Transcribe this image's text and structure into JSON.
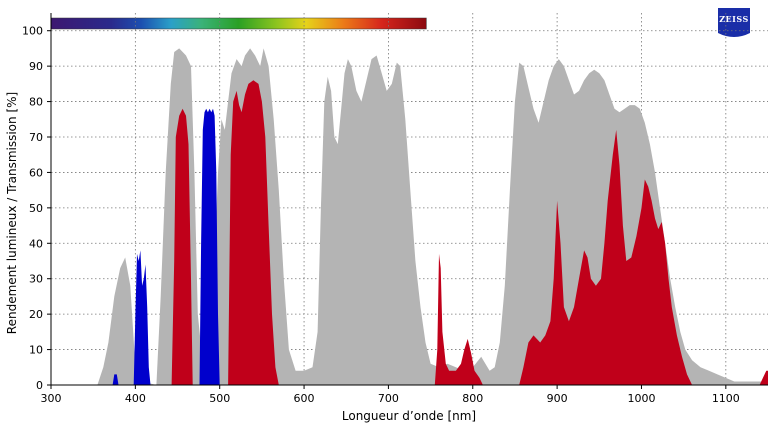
{
  "logo": {
    "text": "ZEISS",
    "color": "#1a2ea8"
  },
  "chart_data": {
    "type": "area",
    "xlabel": "Longueur d’onde [nm]",
    "ylabel": "Rendement lumineux / Transmission [%]",
    "xlim": [
      300,
      1150
    ],
    "ylim": [
      0,
      105
    ],
    "xticks": [
      300,
      400,
      500,
      600,
      700,
      800,
      900,
      1000,
      1100
    ],
    "yticks": [
      0,
      10,
      20,
      30,
      40,
      50,
      60,
      70,
      80,
      90,
      100
    ],
    "grid": true,
    "spectrum_bar": {
      "from_nm": 300,
      "to_nm": 745
    },
    "series": [
      {
        "color": "#b4b4b4",
        "points": [
          [
            355,
            0
          ],
          [
            362,
            5
          ],
          [
            368,
            12
          ],
          [
            375,
            25
          ],
          [
            382,
            33
          ],
          [
            388,
            36
          ],
          [
            394,
            28
          ],
          [
            400,
            5
          ],
          [
            408,
            1
          ],
          [
            425,
            0
          ],
          [
            430,
            25
          ],
          [
            436,
            60
          ],
          [
            442,
            85
          ],
          [
            446,
            94
          ],
          [
            452,
            95
          ],
          [
            460,
            93
          ],
          [
            466,
            90
          ],
          [
            470,
            60
          ],
          [
            474,
            20
          ],
          [
            480,
            6
          ],
          [
            488,
            10
          ],
          [
            494,
            35
          ],
          [
            498,
            60
          ],
          [
            502,
            75
          ],
          [
            506,
            72
          ],
          [
            510,
            80
          ],
          [
            514,
            88
          ],
          [
            520,
            92
          ],
          [
            526,
            90
          ],
          [
            530,
            93
          ],
          [
            536,
            95
          ],
          [
            542,
            93
          ],
          [
            548,
            90
          ],
          [
            552,
            95
          ],
          [
            558,
            90
          ],
          [
            564,
            75
          ],
          [
            570,
            55
          ],
          [
            576,
            30
          ],
          [
            582,
            10
          ],
          [
            590,
            4
          ],
          [
            600,
            4
          ],
          [
            610,
            5
          ],
          [
            616,
            15
          ],
          [
            620,
            50
          ],
          [
            624,
            80
          ],
          [
            628,
            87
          ],
          [
            632,
            83
          ],
          [
            636,
            70
          ],
          [
            640,
            68
          ],
          [
            644,
            78
          ],
          [
            648,
            88
          ],
          [
            652,
            92
          ],
          [
            656,
            90
          ],
          [
            662,
            83
          ],
          [
            668,
            80
          ],
          [
            674,
            86
          ],
          [
            680,
            92
          ],
          [
            686,
            93
          ],
          [
            692,
            88
          ],
          [
            698,
            83
          ],
          [
            704,
            85
          ],
          [
            710,
            91
          ],
          [
            714,
            90
          ],
          [
            720,
            75
          ],
          [
            726,
            55
          ],
          [
            732,
            35
          ],
          [
            738,
            22
          ],
          [
            744,
            12
          ],
          [
            750,
            6
          ],
          [
            760,
            5
          ],
          [
            770,
            6
          ],
          [
            780,
            5
          ],
          [
            790,
            4
          ],
          [
            800,
            5
          ],
          [
            810,
            8
          ],
          [
            815,
            6
          ],
          [
            820,
            4
          ],
          [
            826,
            5
          ],
          [
            832,
            12
          ],
          [
            838,
            28
          ],
          [
            844,
            55
          ],
          [
            850,
            80
          ],
          [
            855,
            91
          ],
          [
            860,
            90
          ],
          [
            866,
            84
          ],
          [
            872,
            78
          ],
          [
            878,
            74
          ],
          [
            884,
            80
          ],
          [
            890,
            86
          ],
          [
            896,
            90
          ],
          [
            902,
            92
          ],
          [
            908,
            90
          ],
          [
            914,
            86
          ],
          [
            920,
            82
          ],
          [
            926,
            83
          ],
          [
            932,
            86
          ],
          [
            938,
            88
          ],
          [
            944,
            89
          ],
          [
            950,
            88
          ],
          [
            956,
            86
          ],
          [
            962,
            82
          ],
          [
            968,
            78
          ],
          [
            974,
            77
          ],
          [
            980,
            78
          ],
          [
            986,
            79
          ],
          [
            992,
            79
          ],
          [
            998,
            78
          ],
          [
            1004,
            74
          ],
          [
            1010,
            68
          ],
          [
            1016,
            60
          ],
          [
            1022,
            50
          ],
          [
            1028,
            40
          ],
          [
            1034,
            30
          ],
          [
            1040,
            22
          ],
          [
            1046,
            15
          ],
          [
            1052,
            10
          ],
          [
            1060,
            7
          ],
          [
            1070,
            5
          ],
          [
            1080,
            4
          ],
          [
            1090,
            3
          ],
          [
            1100,
            2
          ],
          [
            1110,
            1
          ],
          [
            1125,
            1
          ],
          [
            1135,
            1
          ],
          [
            1150,
            1
          ]
        ]
      },
      {
        "color": "#c0001a",
        "points": [
          [
            443,
            0
          ],
          [
            446,
            35
          ],
          [
            448,
            70
          ],
          [
            452,
            76
          ],
          [
            456,
            78
          ],
          [
            460,
            76
          ],
          [
            463,
            68
          ],
          [
            466,
            30
          ],
          [
            468,
            0
          ],
          [
            510,
            0
          ],
          [
            513,
            65
          ],
          [
            516,
            80
          ],
          [
            520,
            83
          ],
          [
            523,
            79
          ],
          [
            526,
            77
          ],
          [
            530,
            82
          ],
          [
            534,
            85
          ],
          [
            540,
            86
          ],
          [
            546,
            85
          ],
          [
            550,
            80
          ],
          [
            554,
            70
          ],
          [
            558,
            45
          ],
          [
            562,
            20
          ],
          [
            566,
            5
          ],
          [
            570,
            0
          ],
          [
            755,
            0
          ],
          [
            758,
            10
          ],
          [
            760,
            37
          ],
          [
            762,
            33
          ],
          [
            764,
            15
          ],
          [
            768,
            6
          ],
          [
            772,
            4
          ],
          [
            780,
            4
          ],
          [
            786,
            6
          ],
          [
            790,
            10
          ],
          [
            794,
            13
          ],
          [
            798,
            9
          ],
          [
            802,
            4
          ],
          [
            808,
            2
          ],
          [
            812,
            0
          ],
          [
            855,
            0
          ],
          [
            860,
            5
          ],
          [
            866,
            12
          ],
          [
            872,
            14
          ],
          [
            880,
            12
          ],
          [
            886,
            14
          ],
          [
            892,
            18
          ],
          [
            896,
            30
          ],
          [
            900,
            52
          ],
          [
            904,
            40
          ],
          [
            908,
            22
          ],
          [
            914,
            18
          ],
          [
            920,
            22
          ],
          [
            926,
            30
          ],
          [
            932,
            38
          ],
          [
            936,
            36
          ],
          [
            940,
            30
          ],
          [
            946,
            28
          ],
          [
            952,
            30
          ],
          [
            956,
            40
          ],
          [
            960,
            52
          ],
          [
            966,
            65
          ],
          [
            970,
            72
          ],
          [
            974,
            62
          ],
          [
            978,
            45
          ],
          [
            982,
            35
          ],
          [
            988,
            36
          ],
          [
            994,
            42
          ],
          [
            1000,
            50
          ],
          [
            1004,
            58
          ],
          [
            1008,
            56
          ],
          [
            1012,
            52
          ],
          [
            1016,
            47
          ],
          [
            1020,
            44
          ],
          [
            1024,
            46
          ],
          [
            1028,
            40
          ],
          [
            1032,
            30
          ],
          [
            1036,
            22
          ],
          [
            1042,
            14
          ],
          [
            1048,
            8
          ],
          [
            1054,
            3
          ],
          [
            1060,
            0
          ],
          [
            1140,
            0
          ],
          [
            1144,
            2
          ],
          [
            1148,
            4
          ],
          [
            1150,
            4
          ]
        ]
      },
      {
        "color": "#0000cc",
        "points": [
          [
            373,
            0
          ],
          [
            375,
            3
          ],
          [
            378,
            3
          ],
          [
            380,
            0
          ],
          [
            398,
            0
          ],
          [
            400,
            20
          ],
          [
            402,
            37
          ],
          [
            404,
            35
          ],
          [
            406,
            38
          ],
          [
            408,
            28
          ],
          [
            410,
            30
          ],
          [
            412,
            34
          ],
          [
            414,
            22
          ],
          [
            416,
            5
          ],
          [
            418,
            0
          ],
          [
            476,
            0
          ],
          [
            478,
            40
          ],
          [
            480,
            72
          ],
          [
            482,
            77
          ],
          [
            484,
            78
          ],
          [
            486,
            77
          ],
          [
            488,
            78
          ],
          [
            490,
            77
          ],
          [
            492,
            78
          ],
          [
            494,
            76
          ],
          [
            496,
            60
          ],
          [
            498,
            20
          ],
          [
            500,
            0
          ]
        ]
      }
    ]
  }
}
